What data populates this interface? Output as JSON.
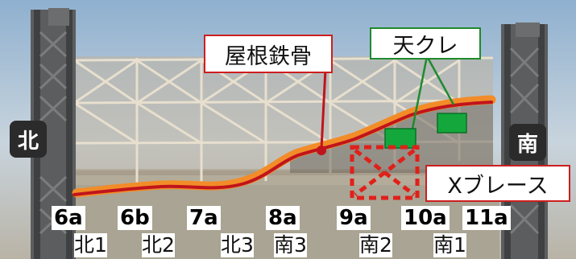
{
  "labels": {
    "roof_steel": "屋根鉄骨",
    "crane": "天クレ",
    "x_brace": "Xブレース",
    "north": "北",
    "south": "南"
  },
  "bays": [
    "6a",
    "6b",
    "7a",
    "8a",
    "9a",
    "10a",
    "11a"
  ],
  "sides": [
    "北1",
    "北2",
    "北3",
    "南3",
    "南2",
    "南1"
  ],
  "colors": {
    "debris_line": "#c0141c",
    "debris_glow": "#f28c28",
    "crane_fill": "#14a83c",
    "callout_red": "#cc1f1f",
    "callout_green": "#1f8a2e",
    "brace_dash": "#e0201a"
  }
}
